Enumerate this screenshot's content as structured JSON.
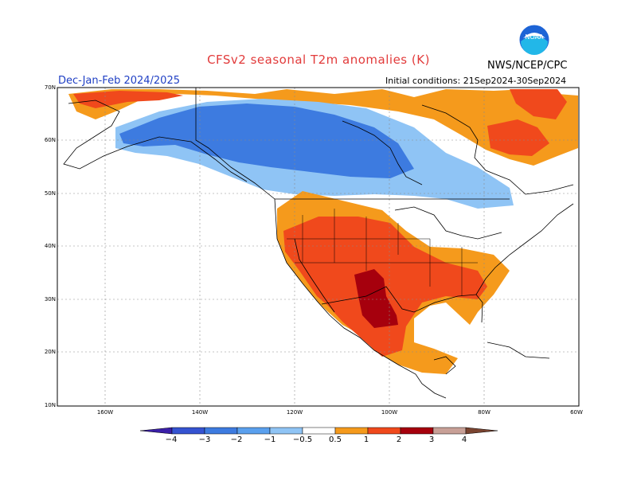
{
  "header": {
    "title": "CFSv2 seasonal T2m anomalies (K)",
    "season": "Dec-Jan-Feb 2024/2025",
    "initial_conditions": "Initial conditions: 21Sep2024-30Sep2024",
    "agency": "NWS/NCEP/CPC",
    "logo_text": "NOAA"
  },
  "map": {
    "lat_labels": [
      "70N",
      "60N",
      "50N",
      "40N",
      "30N",
      "20N",
      "10N"
    ],
    "lon_labels": [
      "160W",
      "140W",
      "120W",
      "100W",
      "80W",
      "60W"
    ],
    "grid": true,
    "region": "North America",
    "anomaly_regions": [
      {
        "name": "Alaska / western & central Canada",
        "anomaly_class": "below -1 (blue)"
      },
      {
        "name": "Southern Canada / northern US border",
        "anomaly_class": "-1 to -0.5 (light blue)"
      },
      {
        "name": "Southwest US / Mexico / southern Plains",
        "anomaly_class": "1 to 2 (red-orange)"
      },
      {
        "name": "Texas / northern Mexico core",
        "anomaly_class": "2 to 3 (dark red)"
      },
      {
        "name": "Southeast US",
        "anomaly_class": "1 to 2"
      },
      {
        "name": "Northern Quebec / Labrador",
        "anomaly_class": "1 to 2"
      },
      {
        "name": "Arctic coast / northern Canada",
        "anomaly_class": "0.5 to 2"
      }
    ]
  },
  "colorbar": {
    "labels": [
      "−4",
      "−3",
      "−2",
      "−1",
      "−0.5",
      "0.5",
      "1",
      "2",
      "3",
      "4"
    ],
    "colors": [
      "#3a1fa8",
      "#3553d1",
      "#3d7be0",
      "#5aa0ee",
      "#8fc4f5",
      "#ffffff",
      "#f59a1c",
      "#f0491c",
      "#a6000d",
      "#c8a097",
      "#7a4430"
    ]
  }
}
